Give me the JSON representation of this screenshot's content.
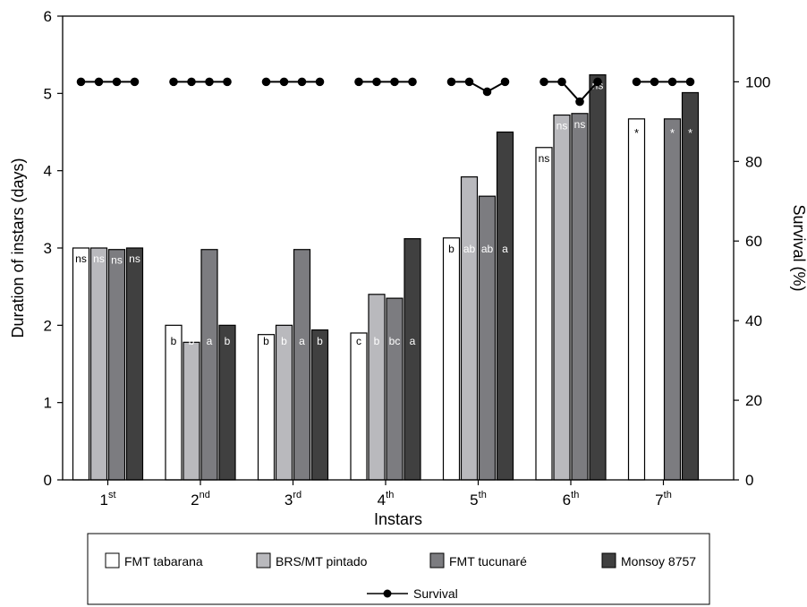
{
  "chart_data": {
    "type": "bar",
    "xlabel": "Instars",
    "ylabel": "Duration of instars (days)",
    "y2label": "Survival (%)",
    "ylim": [
      0,
      6
    ],
    "y2lim": [
      0,
      116.5
    ],
    "yticks": [
      "0",
      "1",
      "2",
      "3",
      "4",
      "5",
      "6"
    ],
    "y2ticks": [
      "0",
      "20",
      "40",
      "60",
      "80",
      "100"
    ],
    "categories": [
      {
        "base": "1",
        "sup": "st"
      },
      {
        "base": "2",
        "sup": "nd"
      },
      {
        "base": "3",
        "sup": "rd"
      },
      {
        "base": "4",
        "sup": "th"
      },
      {
        "base": "5",
        "sup": "th"
      },
      {
        "base": "6",
        "sup": "th"
      },
      {
        "base": "7",
        "sup": "th"
      }
    ],
    "series": [
      {
        "name": "FMT tabarana",
        "color": "#ffffff",
        "values": [
          3.0,
          2.0,
          1.88,
          1.9,
          3.13,
          4.3,
          4.67
        ],
        "labels": [
          "ns",
          "b",
          "b",
          "c",
          "b",
          "ns",
          "*"
        ]
      },
      {
        "name": "BRS/MT pintado",
        "color": "#b9b9bd",
        "values": [
          3.0,
          1.78,
          2.0,
          2.4,
          3.92,
          4.72,
          null
        ],
        "labels": [
          "ns",
          "b",
          "b",
          "b",
          "ab",
          "ns",
          ""
        ]
      },
      {
        "name": "FMT tucunaré",
        "color": "#7c7c80",
        "values": [
          2.98,
          2.98,
          2.98,
          2.35,
          3.67,
          4.74,
          4.67
        ],
        "labels": [
          "ns",
          "a",
          "a",
          "bc",
          "ab",
          "ns",
          "*"
        ]
      },
      {
        "name": "Monsoy 8757",
        "color": "#404040",
        "values": [
          3.0,
          2.0,
          1.94,
          3.12,
          4.5,
          5.24,
          5.01
        ],
        "labels": [
          "ns",
          "b",
          "b",
          "a",
          "a",
          "ns",
          "*"
        ]
      }
    ],
    "survival": {
      "name": "Survival",
      "values": [
        [
          100,
          100,
          100,
          100
        ],
        [
          100,
          100,
          100,
          100
        ],
        [
          100,
          100,
          100,
          100
        ],
        [
          100,
          100,
          100,
          100
        ],
        [
          100,
          100,
          97.5,
          100
        ],
        [
          100,
          100,
          95,
          100
        ],
        [
          100,
          100,
          100,
          100
        ]
      ]
    },
    "legend_position": "bottom",
    "grid": false
  }
}
